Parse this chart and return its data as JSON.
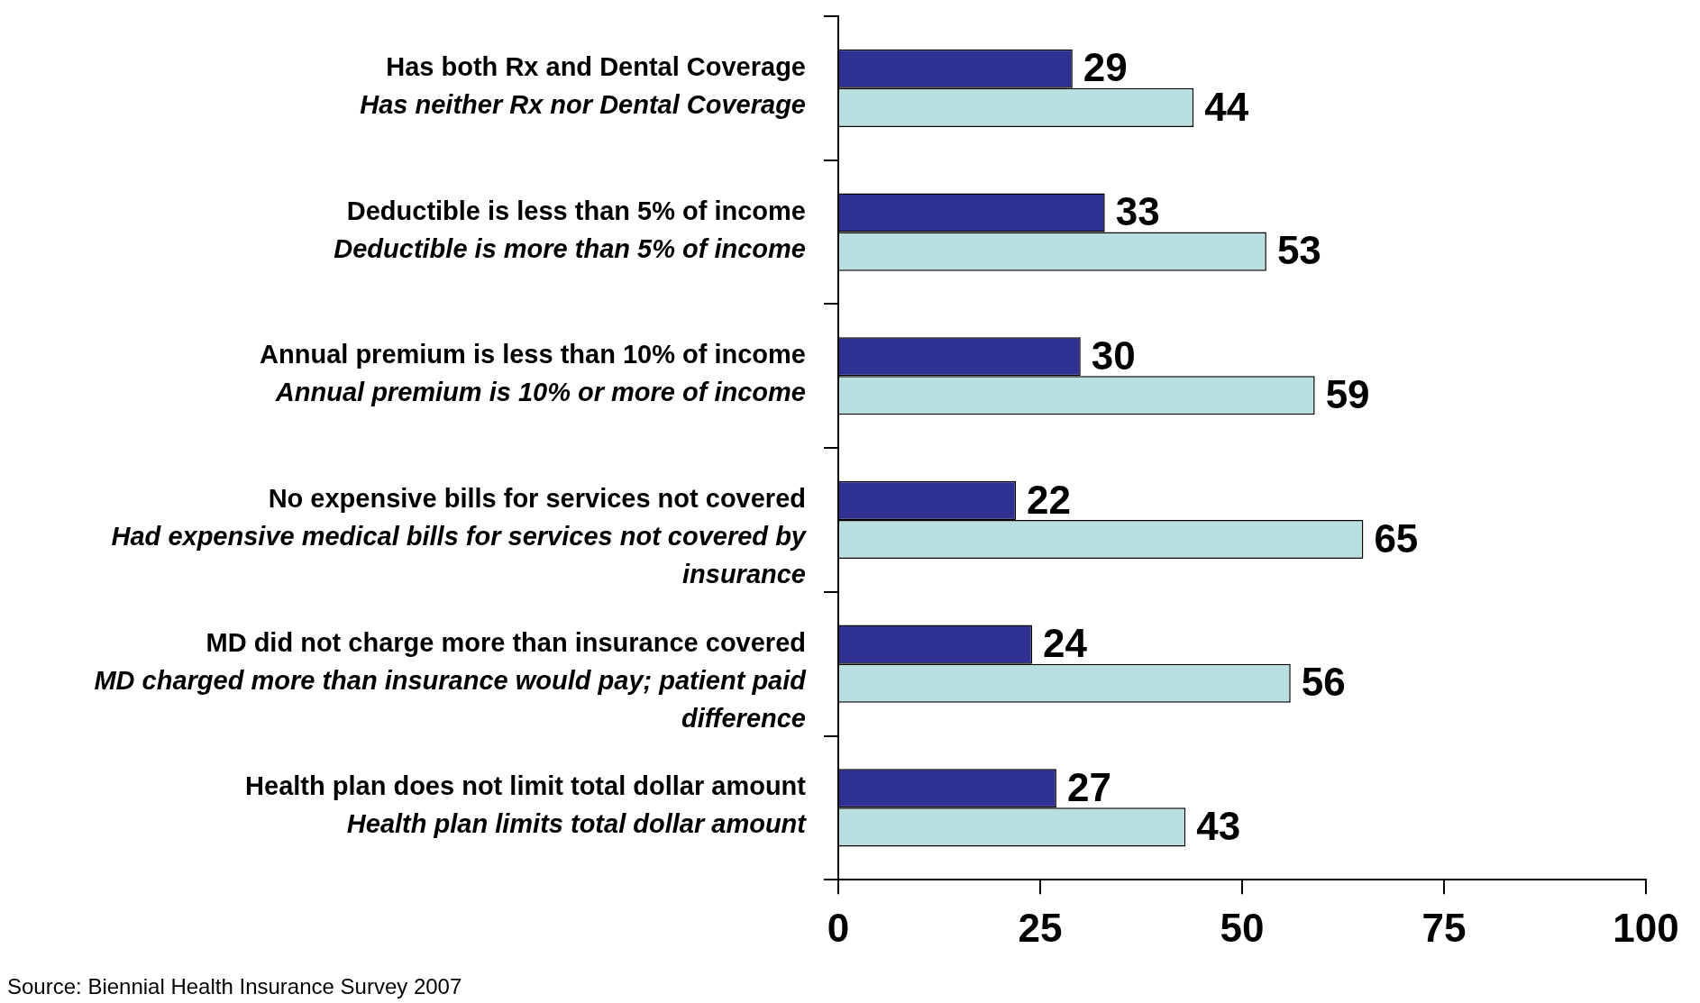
{
  "chart_data": {
    "type": "bar",
    "orientation": "horizontal",
    "categories": [
      "Has both Rx and Dental Coverage\nHas neither Rx nor Dental Coverage",
      "Deductible is less than 5% of income\nDeductible is more than 5% of income",
      "Annual premium is less than 10% of income\nAnnual premium is 10% or more of income",
      "No expensive bills for services not covered\nHad expensive medical bills for services not covered by insurance",
      "MD did not charge more than insurance covered\nMD charged more than insurance would pay; patient paid difference",
      "Health plan does not limit total dollar amount\nHealth plan limits total dollar amount"
    ],
    "series": [
      {
        "color": "#2e3192",
        "values": [
          29,
          33,
          30,
          22,
          24,
          27
        ]
      },
      {
        "color": "#b9dfe0",
        "values": [
          44,
          53,
          59,
          65,
          56,
          43
        ]
      }
    ],
    "xlim": [
      0,
      100
    ],
    "xticks": [
      0,
      25,
      50,
      75,
      100
    ],
    "data_labels": true,
    "annotations": [
      "Source: Biennial Health Insurance Survey 2007"
    ]
  }
}
